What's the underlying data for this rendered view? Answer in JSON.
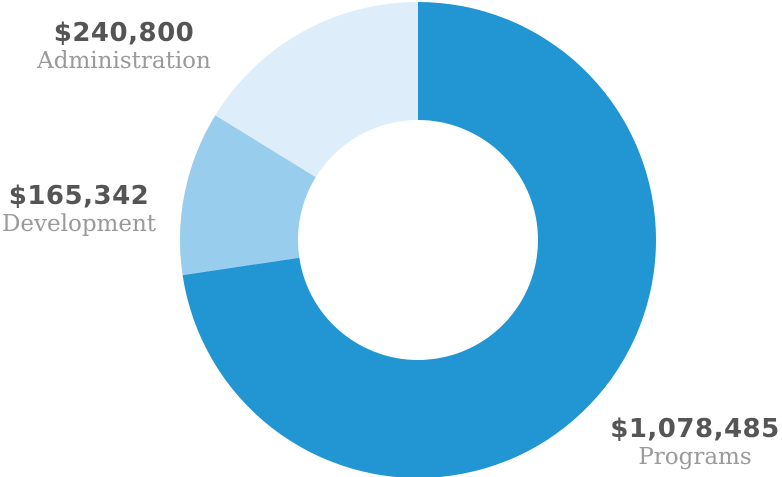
{
  "chart_data": {
    "type": "pie",
    "donut": true,
    "slices": [
      {
        "name": "Programs",
        "value": 1078485,
        "value_label": "$1,078,485",
        "color": "#2196d3"
      },
      {
        "name": "Development",
        "value": 165342,
        "value_label": "$165,342",
        "color": "#98cdee"
      },
      {
        "name": "Administration",
        "value": 240800,
        "value_label": "$240,800",
        "color": "#ddedf9"
      }
    ]
  }
}
